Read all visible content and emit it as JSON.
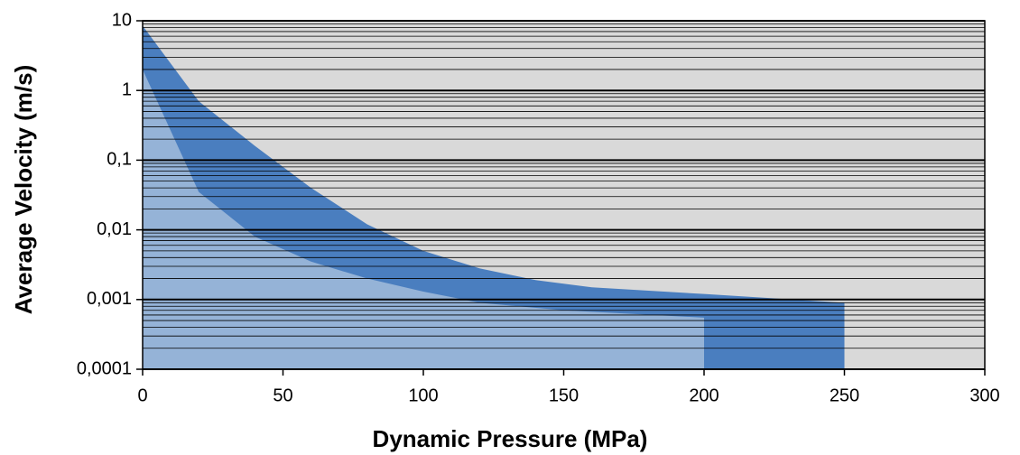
{
  "chart_data": {
    "type": "area",
    "x_label": "Dynamic Pressure (MPa)",
    "y_label": "Average Velocity (m/s)",
    "log_y": true,
    "background": "#d9d9d9",
    "series": [
      {
        "color": "#4a7ebf",
        "x": [
          0,
          20,
          40,
          50,
          60,
          80,
          100,
          120,
          140,
          160,
          200,
          250
        ],
        "values": [
          8.5,
          0.7,
          0.16,
          0.08,
          0.04,
          0.012,
          0.005,
          0.0028,
          0.0019,
          0.0015,
          0.0012,
          0.0009
        ]
      },
      {
        "color": "#95b3d7",
        "x": [
          0,
          20,
          40,
          60,
          80,
          100,
          120,
          150,
          200
        ],
        "values": [
          2,
          0.035,
          0.008,
          0.0035,
          0.002,
          0.0013,
          0.0009,
          0.0007,
          0.00055
        ]
      }
    ],
    "xlim": [
      0,
      300
    ],
    "xticks": [
      0,
      50,
      100,
      150,
      200,
      250,
      300
    ],
    "ylim": [
      0.0001,
      10
    ],
    "yticks": [
      {
        "value": 0.0001,
        "label": "0,0001"
      },
      {
        "value": 0.001,
        "label": "0,001"
      },
      {
        "value": 0.01,
        "label": "0,01"
      },
      {
        "value": 0.1,
        "label": "0,1"
      },
      1,
      10
    ],
    "yminor": [
      0.0002,
      0.0003,
      0.0004,
      0.0005,
      0.0006,
      0.0007,
      0.0008,
      0.0009,
      0.002,
      0.003,
      0.004,
      0.005,
      0.006,
      0.007,
      0.008,
      0.009,
      0.02,
      0.03,
      0.04,
      0.05,
      0.06,
      0.07,
      0.08,
      0.09,
      0.2,
      0.3,
      0.4,
      0.5,
      0.6,
      0.7,
      0.8,
      0.9,
      2,
      3,
      4,
      5,
      6,
      7,
      8,
      9
    ],
    "grid": true
  }
}
